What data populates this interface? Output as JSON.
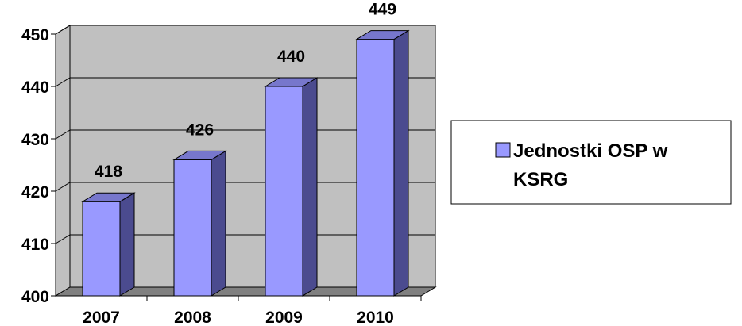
{
  "chart_data": {
    "type": "bar",
    "categories": [
      "2007",
      "2008",
      "2009",
      "2010"
    ],
    "series": [
      {
        "name": "Jednostki OSP w KSRG",
        "values": [
          418,
          426,
          440,
          449
        ]
      }
    ],
    "data_labels": [
      "418",
      "426",
      "440",
      "449"
    ],
    "y_ticks": [
      "400",
      "410",
      "420",
      "430",
      "440",
      "450"
    ],
    "ylim": [
      400,
      450
    ],
    "grid": true,
    "three_d": true,
    "legend": {
      "position": "right",
      "lines": [
        "Jednostki OSP w",
        "KSRG"
      ]
    },
    "colors": {
      "bar_front": "#9999FF",
      "bar_side": "#4B4B8F",
      "bar_top": "#7777CC",
      "wall": "#C0C0C0",
      "floor": "#808080"
    }
  }
}
